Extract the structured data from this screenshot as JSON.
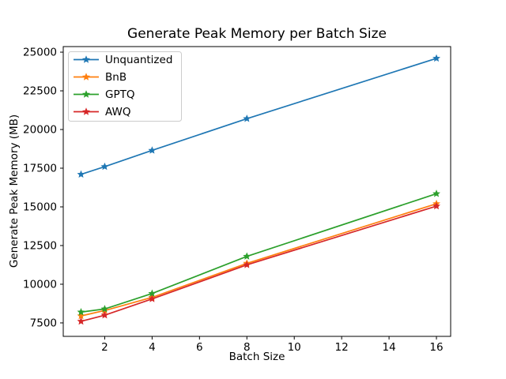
{
  "chart_data": {
    "type": "line",
    "title": "Generate Peak Memory per Batch Size",
    "xlabel": "Batch Size",
    "ylabel": "Generate Peak Memory (MB)",
    "x": [
      1,
      2,
      4,
      8,
      16
    ],
    "series": [
      {
        "name": "Unquantized",
        "color": "#1f77b4",
        "values": [
          17100,
          17600,
          18650,
          20700,
          24600
        ]
      },
      {
        "name": "BnB",
        "color": "#ff7f0e",
        "values": [
          7950,
          8300,
          9150,
          11350,
          15200
        ]
      },
      {
        "name": "GPTQ",
        "color": "#2ca02c",
        "values": [
          8200,
          8400,
          9400,
          11800,
          15850
        ]
      },
      {
        "name": "AWQ",
        "color": "#d62728",
        "values": [
          7600,
          8000,
          9050,
          11250,
          15050
        ]
      }
    ],
    "xticks": [
      2,
      4,
      6,
      8,
      10,
      12,
      14,
      16
    ],
    "yticks": [
      7500,
      10000,
      12500,
      15000,
      17500,
      20000,
      22500,
      25000
    ],
    "xlim": [
      0.25,
      16.6
    ],
    "ylim": [
      6630,
      25360
    ],
    "marker": "star",
    "grid": false,
    "legend": {
      "position": "upper left",
      "border_color": "#cccccc",
      "background": "#ffffff"
    }
  }
}
